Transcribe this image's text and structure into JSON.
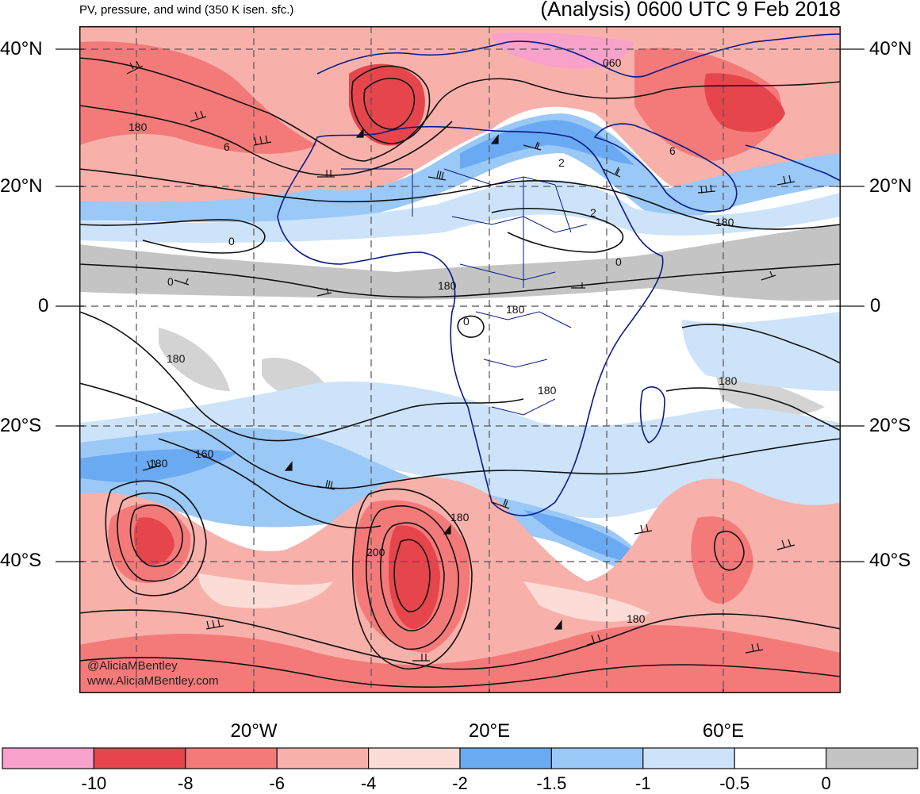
{
  "subtitle": "PV, pressure, and wind (350 K isen. sfc.)",
  "title": "(Analysis) 0600 UTC 9 Feb 2018",
  "lat_labels": [
    "40°N",
    "20°N",
    "0",
    "20°S",
    "40°S"
  ],
  "lon_labels": [
    "20°W",
    "20°E",
    "60°E"
  ],
  "credits": [
    "@AliciaMBentley",
    "www.AliciaMBentley.com"
  ],
  "contour_labels": [
    "180",
    "6",
    "0",
    "0",
    "180",
    "180",
    "160",
    "180",
    "180",
    "200",
    "180",
    "180",
    "180",
    "180",
    "180",
    "0",
    "0",
    "2",
    "2",
    "6",
    "060"
  ],
  "colorbar": {
    "labels": [
      "-10",
      "-8",
      "-6",
      "-4",
      "-2",
      "-1.5",
      "-1",
      "-0.5",
      "0"
    ],
    "colors": [
      "#f7a1cb",
      "#e6454c",
      "#f47a7a",
      "#f8b1aa",
      "#fbdcd7",
      "#6aaaf2",
      "#9ac8f7",
      "#cce3fa",
      "#ffffff",
      "#c4c4c4"
    ]
  },
  "colors": {
    "strong_neg": "#e6454c",
    "neg": "#f47a7a",
    "weak_neg": "#f8b1aa",
    "faint_neg": "#fbdcd7",
    "blue": "#6aaaf2",
    "light_blue": "#9ac8f7",
    "pale_blue": "#cce3fa",
    "gray": "#c4c4c4",
    "coast": "#0a1a8a"
  }
}
